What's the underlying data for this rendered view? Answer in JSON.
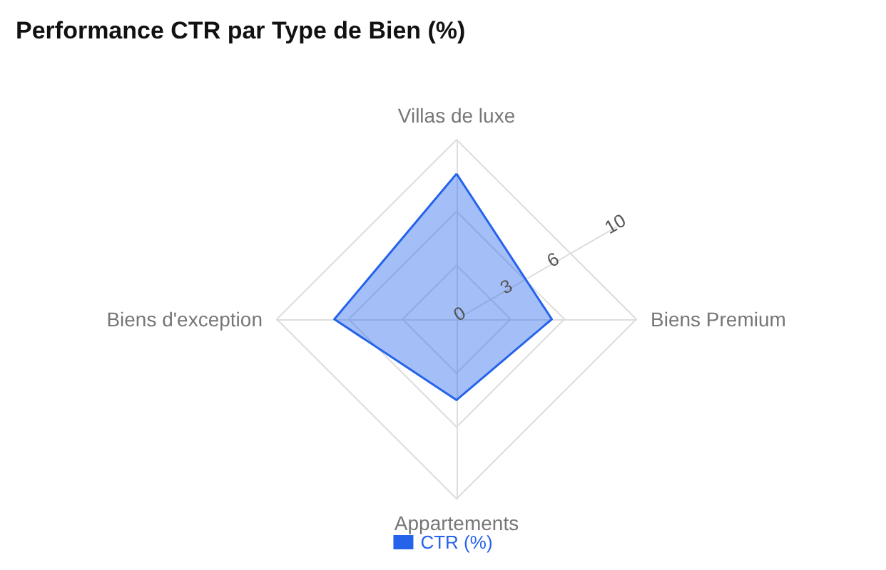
{
  "chart_data": {
    "type": "radar",
    "title": "Performance CTR par Type de Bien (%)",
    "categories": [
      "Villas de luxe",
      "Biens Premium",
      "Appartements",
      "Biens d'exception"
    ],
    "series": [
      {
        "name": "CTR (%)",
        "color": "#2563eb",
        "values": [
          8.1,
          5.3,
          4.5,
          6.8
        ]
      }
    ],
    "ylim": [
      0,
      10
    ],
    "yticks": [
      0,
      3,
      6,
      10
    ],
    "grid": true,
    "legend": "bottom",
    "marker": "none"
  }
}
